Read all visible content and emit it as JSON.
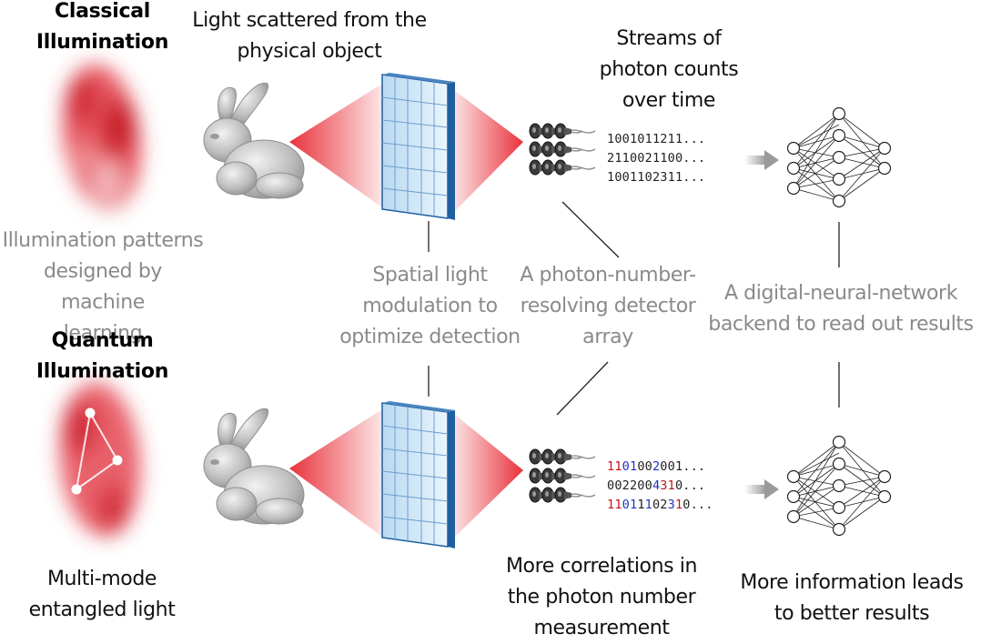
{
  "classical": {
    "title": "Classical\nIllumination",
    "pattern_caption": "Illumination patterns\ndesigned by machine\nlearning",
    "streams": [
      [
        {
          "t": "1001011211...",
          "c": ""
        }
      ],
      [
        {
          "t": "2110021100...",
          "c": ""
        }
      ],
      [
        {
          "t": "1001102311...",
          "c": ""
        }
      ]
    ]
  },
  "quantum": {
    "title": "Quantum\nIllumination",
    "entangled_caption": "Multi-mode\nentangled light",
    "streams": [
      [
        {
          "t": "11",
          "c": "r"
        },
        {
          "t": "01",
          "c": "b"
        },
        {
          "t": "00",
          "c": ""
        },
        {
          "t": "2",
          "c": "b"
        },
        {
          "t": "001...",
          "c": ""
        }
      ],
      [
        {
          "t": "002200",
          "c": ""
        },
        {
          "t": "4",
          "c": "b"
        },
        {
          "t": "31",
          "c": "r"
        },
        {
          "t": "0...",
          "c": ""
        }
      ],
      [
        {
          "t": "11",
          "c": "r"
        },
        {
          "t": "01",
          "c": "b"
        },
        {
          "t": "1",
          "c": ""
        },
        {
          "t": "1",
          "c": "b"
        },
        {
          "t": "02",
          "c": ""
        },
        {
          "t": "3",
          "c": "b"
        },
        {
          "t": "1",
          "c": "r"
        },
        {
          "t": "0...",
          "c": ""
        }
      ]
    ]
  },
  "labels": {
    "scattered": "Light scattered from the\nphysical object",
    "streams": "Streams of\nphoton counts\nover time",
    "slm": "Spatial light\nmodulation to\noptimize detection",
    "detector": "A photon-number-\nresolving detector\narray",
    "backend": "A digital-neural-network\nbackend  to read out results",
    "correlations": "More correlations in\nthe photon number\nmeasurement",
    "information": "More information  leads\nto better results"
  },
  "colors": {
    "beam": "#e8323c",
    "panel": "#cfe6f7",
    "panel_edge": "#1f5fa0",
    "red_digit": "#c4141a",
    "blue_digit": "#1e33c6",
    "caption_grey": "#8a8a8a"
  }
}
